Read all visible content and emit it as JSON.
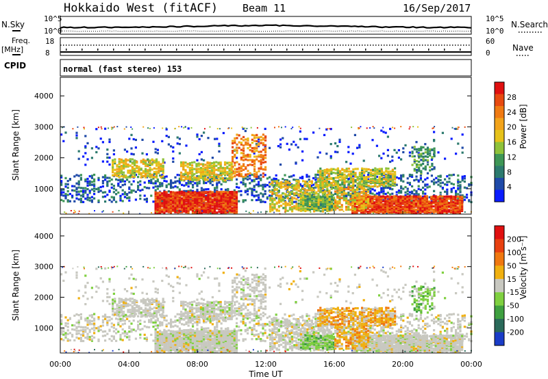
{
  "header": {
    "radar": "Hokkaido West (fitACF)",
    "beam": "Beam 11",
    "date": "16/Sep/2017"
  },
  "strips": {
    "nsky_label": "N.Sky",
    "nsearch_label": "N.Search",
    "freq_label_1": "Freq.",
    "freq_label_2": "[MHz]",
    "nave_label": "Nave",
    "cpid_label": "CPID",
    "cpid_value": "normal (fast stereo) 153",
    "noise_ticks": [
      "10^5",
      "10^0"
    ],
    "freq_ticks": [
      "18",
      "8"
    ],
    "nave_ticks": [
      "60",
      "0"
    ]
  },
  "chart_data": [
    {
      "type": "heatmap",
      "name": "power",
      "ylabel": "Slant Range [km]",
      "yticks": [
        "4000",
        "3000",
        "2000",
        "1000"
      ],
      "colorbar_label": "Power [dB]",
      "colorbar_ticks": [
        "28",
        "24",
        "20",
        "16",
        "12",
        "8",
        "4"
      ],
      "colors": [
        "#0a1cff",
        "#1f4aa8",
        "#2c7a6e",
        "#3e9656",
        "#8fc23a",
        "#e6c21a",
        "#f2a31a",
        "#f07a12",
        "#e84a10",
        "#e01010"
      ]
    },
    {
      "type": "heatmap",
      "name": "velocity",
      "ylabel": "Slant Range [km]",
      "yticks": [
        "4000",
        "3000",
        "2000",
        "1000"
      ],
      "xticks": [
        "00:00",
        "04:00",
        "08:00",
        "12:00",
        "16:00",
        "20:00",
        "00:00"
      ],
      "xlabel": "Time UT",
      "colorbar_label": "Velocity [m s⁻¹]",
      "colorbar_ticks": [
        "200",
        "100",
        "50",
        "15",
        "-15",
        "-50",
        "-100",
        "-200"
      ],
      "colors": [
        "#1a3cc8",
        "#2a6a5a",
        "#3fa040",
        "#7fd040",
        "#c8c8c0",
        "#f0b010",
        "#f07810",
        "#e84010",
        "#e01010"
      ]
    }
  ]
}
